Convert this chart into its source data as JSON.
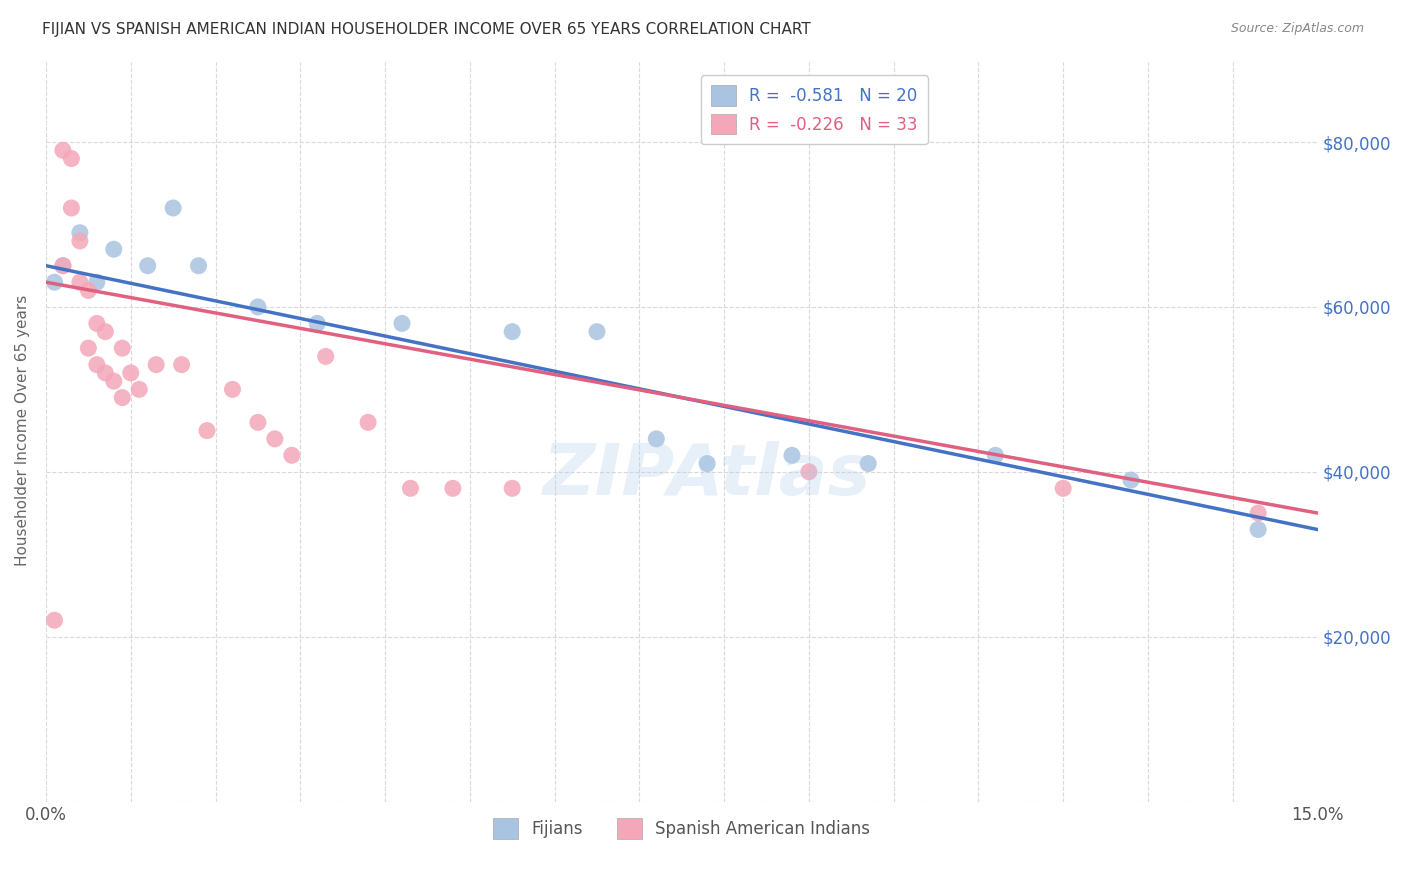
{
  "title": "FIJIAN VS SPANISH AMERICAN INDIAN HOUSEHOLDER INCOME OVER 65 YEARS CORRELATION CHART",
  "source": "Source: ZipAtlas.com",
  "ylabel": "Householder Income Over 65 years",
  "xlim": [
    0.0,
    0.15
  ],
  "ylim": [
    0,
    90000
  ],
  "yticks": [
    0,
    20000,
    40000,
    60000,
    80000
  ],
  "ytick_labels": [
    "",
    "$20,000",
    "$40,000",
    "$60,000",
    "$80,000"
  ],
  "fijian_color": "#a8c4e0",
  "fijian_line_color": "#4472c4",
  "spanish_color": "#f4a7b9",
  "spanish_line_color": "#e06080",
  "legend_fijian_label": "R =  -0.581   N = 20",
  "legend_spanish_label": "R =  -0.226   N = 33",
  "watermark": "ZIPAtlas",
  "bottom_legend_fijian": "Fijians",
  "bottom_legend_spanish": "Spanish American Indians",
  "fijian_x": [
    0.001,
    0.002,
    0.004,
    0.006,
    0.008,
    0.012,
    0.015,
    0.018,
    0.025,
    0.032,
    0.042,
    0.055,
    0.065,
    0.072,
    0.078,
    0.088,
    0.097,
    0.112,
    0.128,
    0.143
  ],
  "fijian_y": [
    63000,
    65000,
    69000,
    63000,
    67000,
    65000,
    72000,
    65000,
    60000,
    58000,
    58000,
    57000,
    57000,
    44000,
    41000,
    42000,
    41000,
    42000,
    39000,
    33000
  ],
  "spanish_x": [
    0.001,
    0.002,
    0.002,
    0.003,
    0.003,
    0.004,
    0.004,
    0.005,
    0.005,
    0.006,
    0.006,
    0.007,
    0.007,
    0.008,
    0.009,
    0.009,
    0.01,
    0.011,
    0.013,
    0.016,
    0.019,
    0.022,
    0.025,
    0.027,
    0.029,
    0.033,
    0.038,
    0.043,
    0.048,
    0.055,
    0.09,
    0.12,
    0.143
  ],
  "spanish_y": [
    22000,
    65000,
    79000,
    78000,
    72000,
    68000,
    63000,
    62000,
    55000,
    58000,
    53000,
    57000,
    52000,
    51000,
    55000,
    49000,
    52000,
    50000,
    53000,
    53000,
    45000,
    50000,
    46000,
    44000,
    42000,
    54000,
    46000,
    38000,
    38000,
    38000,
    40000,
    38000,
    35000
  ],
  "background_color": "#ffffff",
  "grid_color": "#d0d0d0",
  "title_color": "#333333",
  "right_ytick_color": "#4472c4"
}
